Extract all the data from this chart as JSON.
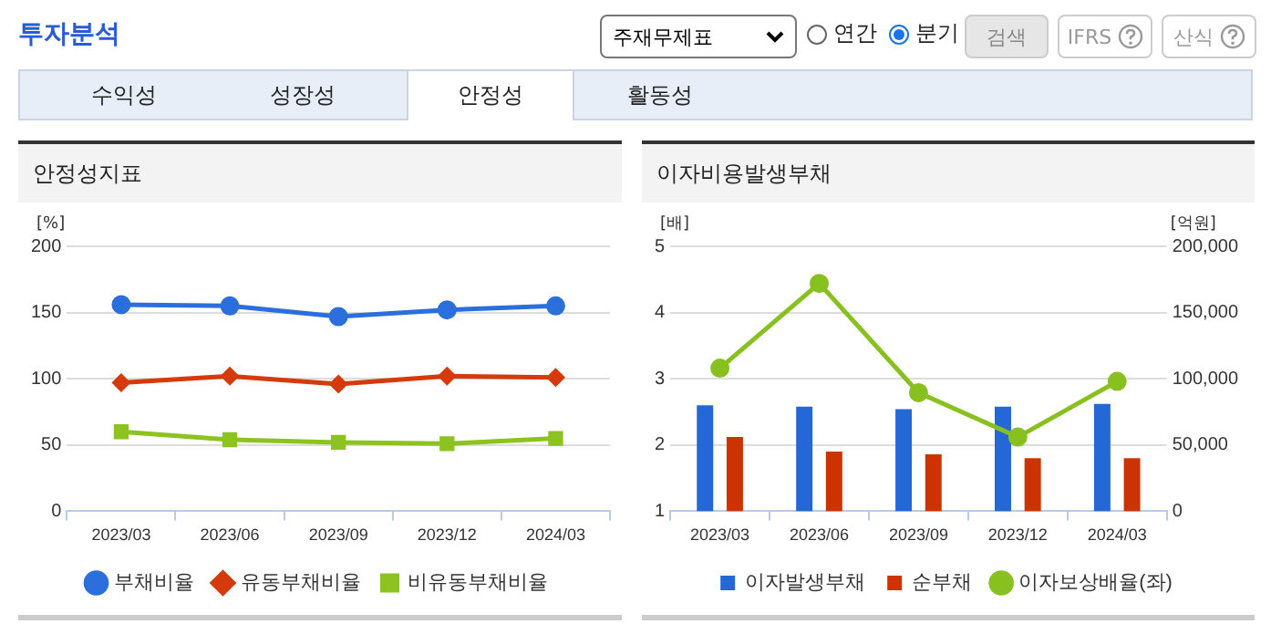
{
  "chart_data": [
    {
      "type": "other",
      "title": "투자분석",
      "annotations": [
        "주재무제표",
        "연간",
        "분기",
        "검색",
        "IFRS",
        "산식",
        "수익성",
        "성장성",
        "안정성",
        "활동성"
      ]
    },
    {
      "type": "line",
      "title": "안정성지표",
      "ylabel": "[%]",
      "categories": [
        "2023/03",
        "2023/06",
        "2023/09",
        "2023/12",
        "2024/03"
      ],
      "ylim": [
        0,
        200
      ],
      "yticks": [
        0,
        50,
        100,
        150,
        200
      ],
      "grid": "y",
      "legend": "bottom",
      "series": [
        {
          "name": "부채비율",
          "color": "#2a6fdb",
          "marker": "circle",
          "values": [
            156,
            155,
            147,
            152,
            155
          ]
        },
        {
          "name": "유동부채비율",
          "color": "#d43a0a",
          "marker": "diamond",
          "values": [
            97,
            102,
            96,
            102,
            101
          ]
        },
        {
          "name": "비유동부채비율",
          "color": "#8cc320",
          "marker": "square",
          "values": [
            60,
            54,
            52,
            51,
            55
          ]
        }
      ]
    },
    {
      "type": "bar",
      "title": "이자비용발생부채",
      "ylabel": "[배]",
      "y2label": "[억원]",
      "categories": [
        "2023/03",
        "2023/06",
        "2023/09",
        "2023/12",
        "2024/03"
      ],
      "ylim": [
        1,
        5
      ],
      "yticks": [
        1,
        2,
        3,
        4,
        5
      ],
      "y2lim": [
        0,
        200000
      ],
      "y2ticks": [
        0,
        {
          "value": 50000,
          "label": "50,000"
        },
        {
          "value": 100000,
          "label": "100,000"
        },
        {
          "value": 150000,
          "label": "150,000"
        },
        {
          "value": 200000,
          "label": "200,000"
        }
      ],
      "grid": "y",
      "legend": "bottom",
      "series": [
        {
          "name": "이자발생부채",
          "color": "#2468d8",
          "axis": "y2",
          "values": [
            80000,
            79000,
            77000,
            79000,
            81000
          ]
        },
        {
          "name": "순부채",
          "color": "#cc3300",
          "axis": "y2",
          "values": [
            56000,
            45000,
            43000,
            40000,
            40000
          ]
        },
        {
          "name": "이자보상배율(좌)",
          "type": "line",
          "color": "#88c020",
          "marker": "circle",
          "axis": "y",
          "values": [
            3.16,
            4.44,
            2.79,
            2.12,
            2.96
          ]
        }
      ]
    }
  ]
}
